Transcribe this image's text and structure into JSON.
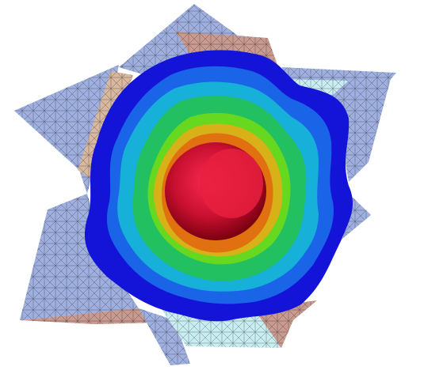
{
  "scene": {
    "background": "#ffffff",
    "mesh_colors": {
      "face_light_blue": "#9fb0e0",
      "face_pale_cyan": "#c9eef2",
      "face_tan": "#d9b8a0",
      "face_salmon": "#c89a90",
      "mesh_line": "#1a1a1a"
    },
    "isosurface_colors": [
      "#1414d8",
      "#1a64e8",
      "#16b0d8",
      "#22c060",
      "#66d820",
      "#d8b018",
      "#e07010",
      "#e01838"
    ]
  }
}
